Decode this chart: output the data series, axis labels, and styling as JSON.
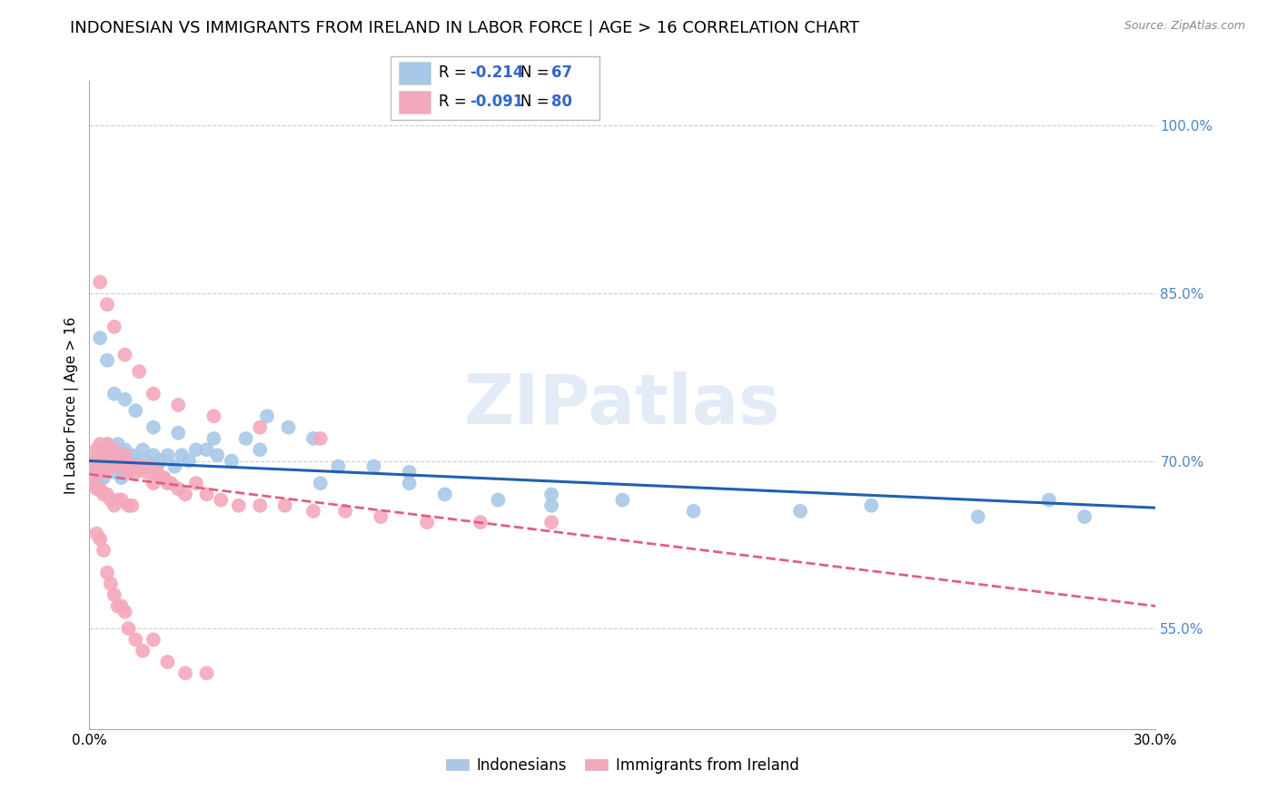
{
  "title": "INDONESIAN VS IMMIGRANTS FROM IRELAND IN LABOR FORCE | AGE > 16 CORRELATION CHART",
  "source": "Source: ZipAtlas.com",
  "ylabel": "In Labor Force | Age > 16",
  "xlim": [
    0.0,
    0.3
  ],
  "ylim": [
    0.46,
    1.04
  ],
  "yticks": [
    0.55,
    0.7,
    0.85,
    1.0
  ],
  "ytick_labels": [
    "55.0%",
    "70.0%",
    "85.0%",
    "100.0%"
  ],
  "xticks": [
    0.0,
    0.05,
    0.1,
    0.15,
    0.2,
    0.25,
    0.3
  ],
  "xtick_labels": [
    "0.0%",
    "",
    "",
    "",
    "",
    "",
    "30.0%"
  ],
  "blue_color": "#a8c8e8",
  "pink_color": "#f4a8bc",
  "blue_line_color": "#2060b0",
  "pink_line_color": "#e06080",
  "watermark": "ZIPatlas",
  "legend_label_blue": "Indonesians",
  "legend_label_pink": "Immigrants from Ireland",
  "title_fontsize": 13,
  "axis_label_fontsize": 11,
  "tick_fontsize": 11,
  "blue_x": [
    0.001,
    0.002,
    0.002,
    0.003,
    0.003,
    0.004,
    0.004,
    0.005,
    0.005,
    0.006,
    0.006,
    0.007,
    0.007,
    0.008,
    0.008,
    0.009,
    0.009,
    0.01,
    0.01,
    0.011,
    0.011,
    0.012,
    0.013,
    0.014,
    0.015,
    0.016,
    0.017,
    0.018,
    0.019,
    0.02,
    0.022,
    0.024,
    0.026,
    0.028,
    0.03,
    0.033,
    0.036,
    0.04,
    0.044,
    0.05,
    0.056,
    0.063,
    0.07,
    0.08,
    0.09,
    0.1,
    0.115,
    0.13,
    0.15,
    0.17,
    0.2,
    0.22,
    0.25,
    0.27,
    0.28,
    0.003,
    0.005,
    0.007,
    0.01,
    0.013,
    0.018,
    0.025,
    0.035,
    0.048,
    0.065,
    0.09,
    0.13
  ],
  "blue_y": [
    0.695,
    0.7,
    0.68,
    0.71,
    0.695,
    0.705,
    0.685,
    0.7,
    0.715,
    0.695,
    0.71,
    0.69,
    0.7,
    0.715,
    0.695,
    0.705,
    0.685,
    0.7,
    0.71,
    0.695,
    0.69,
    0.705,
    0.7,
    0.695,
    0.71,
    0.7,
    0.695,
    0.705,
    0.695,
    0.7,
    0.705,
    0.695,
    0.705,
    0.7,
    0.71,
    0.71,
    0.705,
    0.7,
    0.72,
    0.74,
    0.73,
    0.72,
    0.695,
    0.695,
    0.69,
    0.67,
    0.665,
    0.66,
    0.665,
    0.655,
    0.655,
    0.66,
    0.65,
    0.665,
    0.65,
    0.81,
    0.79,
    0.76,
    0.755,
    0.745,
    0.73,
    0.725,
    0.72,
    0.71,
    0.68,
    0.68,
    0.67
  ],
  "pink_x": [
    0.001,
    0.001,
    0.002,
    0.002,
    0.002,
    0.003,
    0.003,
    0.003,
    0.004,
    0.004,
    0.004,
    0.005,
    0.005,
    0.005,
    0.006,
    0.006,
    0.007,
    0.007,
    0.007,
    0.008,
    0.008,
    0.009,
    0.009,
    0.01,
    0.01,
    0.011,
    0.011,
    0.012,
    0.012,
    0.013,
    0.014,
    0.015,
    0.016,
    0.017,
    0.018,
    0.019,
    0.02,
    0.021,
    0.022,
    0.023,
    0.025,
    0.027,
    0.03,
    0.033,
    0.037,
    0.042,
    0.048,
    0.055,
    0.063,
    0.072,
    0.082,
    0.095,
    0.11,
    0.13,
    0.003,
    0.005,
    0.007,
    0.01,
    0.014,
    0.018,
    0.025,
    0.035,
    0.048,
    0.065,
    0.002,
    0.003,
    0.004,
    0.005,
    0.006,
    0.007,
    0.008,
    0.009,
    0.01,
    0.011,
    0.013,
    0.015,
    0.018,
    0.022,
    0.027,
    0.033
  ],
  "pink_y": [
    0.68,
    0.7,
    0.69,
    0.71,
    0.675,
    0.695,
    0.715,
    0.675,
    0.69,
    0.705,
    0.67,
    0.7,
    0.715,
    0.67,
    0.695,
    0.665,
    0.7,
    0.71,
    0.66,
    0.695,
    0.665,
    0.7,
    0.665,
    0.695,
    0.705,
    0.69,
    0.66,
    0.695,
    0.66,
    0.69,
    0.695,
    0.695,
    0.69,
    0.695,
    0.68,
    0.69,
    0.685,
    0.685,
    0.68,
    0.68,
    0.675,
    0.67,
    0.68,
    0.67,
    0.665,
    0.66,
    0.66,
    0.66,
    0.655,
    0.655,
    0.65,
    0.645,
    0.645,
    0.645,
    0.86,
    0.84,
    0.82,
    0.795,
    0.78,
    0.76,
    0.75,
    0.74,
    0.73,
    0.72,
    0.635,
    0.63,
    0.62,
    0.6,
    0.59,
    0.58,
    0.57,
    0.57,
    0.565,
    0.55,
    0.54,
    0.53,
    0.54,
    0.52,
    0.51,
    0.51
  ],
  "blue_trend_x": [
    0.0,
    0.3
  ],
  "blue_trend_y": [
    0.7,
    0.658
  ],
  "pink_trend_x": [
    0.0,
    0.3
  ],
  "pink_trend_y": [
    0.688,
    0.57
  ]
}
